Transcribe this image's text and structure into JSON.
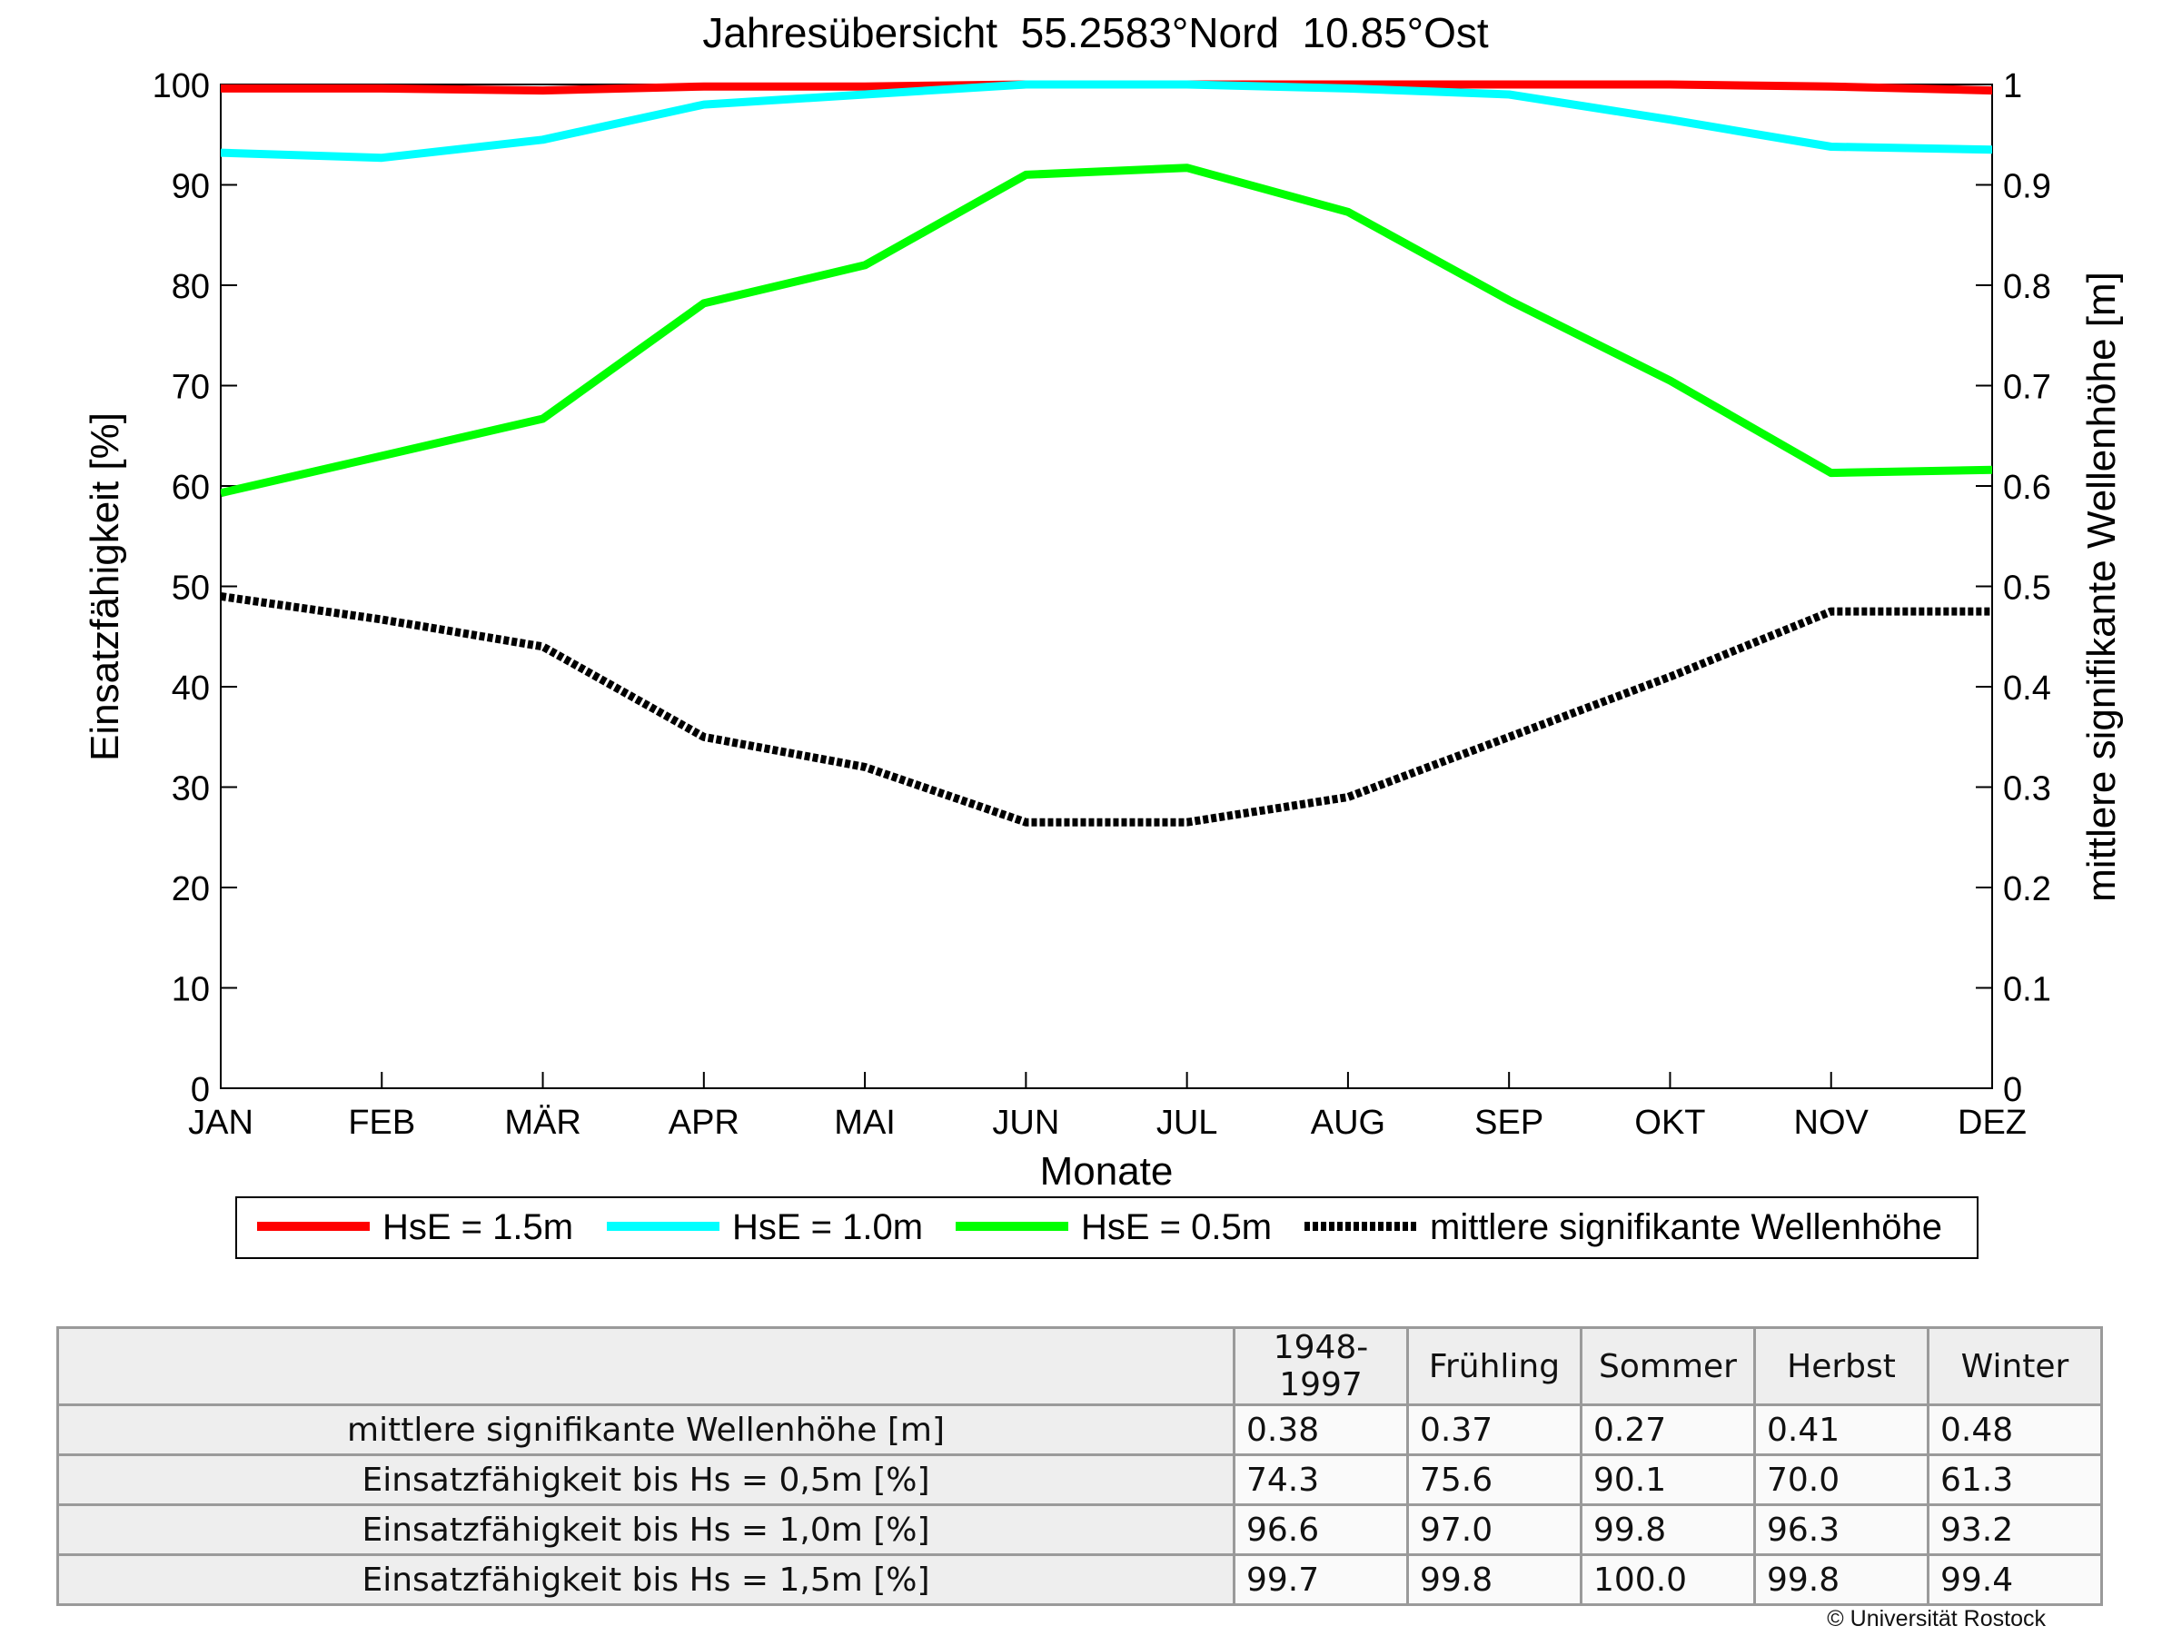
{
  "chart_data": {
    "type": "line",
    "title": "Jahresübersicht  55.2583°Nord  10.85°Ost",
    "xlabel": "Monate",
    "ylabel": "Einsatzfähigkeit [%]",
    "y2label": "mittlere signifikante Wellenhöhe [m]",
    "categories": [
      "JAN",
      "FEB",
      "MÄR",
      "APR",
      "MAI",
      "JUN",
      "JUL",
      "AUG",
      "SEP",
      "OKT",
      "NOV",
      "DEZ"
    ],
    "ylim": [
      0,
      100
    ],
    "y2lim": [
      0,
      1
    ],
    "yticks": [
      "0",
      "10",
      "20",
      "30",
      "40",
      "50",
      "60",
      "70",
      "80",
      "90",
      "100"
    ],
    "y2ticks": [
      "0",
      "0.1",
      "0.2",
      "0.3",
      "0.4",
      "0.5",
      "0.6",
      "0.7",
      "0.8",
      "0.9",
      "1"
    ],
    "grid": false,
    "legend_position": "bottom",
    "series": [
      {
        "name": "HsE = 1.5m",
        "axis": "left",
        "color": "#ff0000",
        "style": "solid",
        "values": [
          99.6,
          99.6,
          99.4,
          99.8,
          99.8,
          100.0,
          100.0,
          100.0,
          100.0,
          100.0,
          99.8,
          99.4
        ]
      },
      {
        "name": "HsE = 1.0m",
        "axis": "left",
        "color": "#00ffff",
        "style": "solid",
        "values": [
          93.2,
          92.7,
          94.5,
          98.0,
          99.0,
          100.0,
          100.0,
          99.6,
          99.0,
          96.5,
          93.8,
          93.5
        ]
      },
      {
        "name": "HsE = 0.5m",
        "axis": "left",
        "color": "#00ff00",
        "style": "solid",
        "values": [
          59.3,
          63.0,
          66.7,
          78.2,
          82.0,
          91.0,
          91.7,
          87.3,
          78.5,
          70.5,
          61.3,
          61.6
        ]
      },
      {
        "name": "mittlere signifikante Wellenhöhe",
        "axis": "right",
        "color": "#000000",
        "style": "dotted",
        "values": [
          0.49,
          0.467,
          0.44,
          0.35,
          0.32,
          0.265,
          0.265,
          0.29,
          0.35,
          0.41,
          0.475,
          0.475
        ]
      }
    ]
  },
  "table": {
    "columns": [
      "1948-1997",
      "Frühling",
      "Sommer",
      "Herbst",
      "Winter"
    ],
    "rows": [
      {
        "label": "mittlere signifikante Wellenhöhe [m]",
        "values": [
          "0.38",
          "0.37",
          "0.27",
          "0.41",
          "0.48"
        ]
      },
      {
        "label": "Einsatzfähigkeit bis Hs = 0,5m [%]",
        "values": [
          "74.3",
          "75.6",
          "90.1",
          "70.0",
          "61.3"
        ]
      },
      {
        "label": "Einsatzfähigkeit bis Hs = 1,0m [%]",
        "values": [
          "96.6",
          "97.0",
          "99.8",
          "96.3",
          "93.2"
        ]
      },
      {
        "label": "Einsatzfähigkeit bis Hs = 1,5m [%]",
        "values": [
          "99.7",
          "99.8",
          "100.0",
          "99.8",
          "99.4"
        ]
      }
    ]
  },
  "copyright": "© Universität Rostock"
}
